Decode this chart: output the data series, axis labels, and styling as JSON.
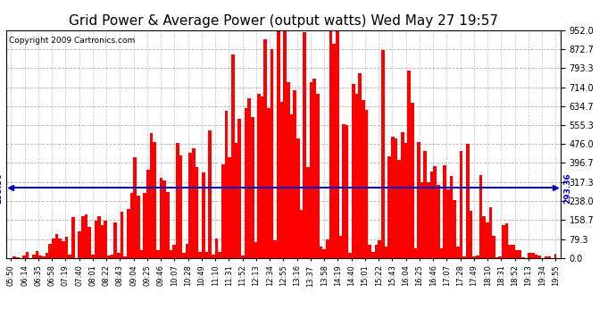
{
  "title": "Grid Power & Average Power (output watts) Wed May 27 19:57",
  "copyright": "Copyright 2009 Cartronics.com",
  "average_value": 293.36,
  "ymin": 0.0,
  "ymax": 952.0,
  "yticks": [
    0.0,
    79.3,
    158.7,
    238.0,
    317.3,
    396.7,
    476.0,
    555.3,
    634.7,
    714.0,
    793.3,
    872.7,
    952.0
  ],
  "bar_color": "#FF0000",
  "avg_line_color": "#0000CC",
  "grid_color": "#AAAAAA",
  "bg_color": "#FFFFFF",
  "plot_bg_color": "#FFFFFF",
  "title_fontsize": 11,
  "avg_label": "293.36",
  "x_labels": [
    "05:50",
    "06:14",
    "06:35",
    "06:58",
    "07:19",
    "07:40",
    "08:01",
    "08:22",
    "08:43",
    "09:04",
    "09:25",
    "09:46",
    "10:07",
    "10:28",
    "10:49",
    "11:10",
    "11:31",
    "11:52",
    "12:13",
    "12:34",
    "12:55",
    "13:16",
    "13:37",
    "13:58",
    "14:19",
    "14:40",
    "15:01",
    "15:22",
    "15:43",
    "16:04",
    "16:25",
    "16:46",
    "17:07",
    "17:28",
    "17:49",
    "18:10",
    "18:31",
    "18:52",
    "19:13",
    "19:34",
    "19:55"
  ]
}
